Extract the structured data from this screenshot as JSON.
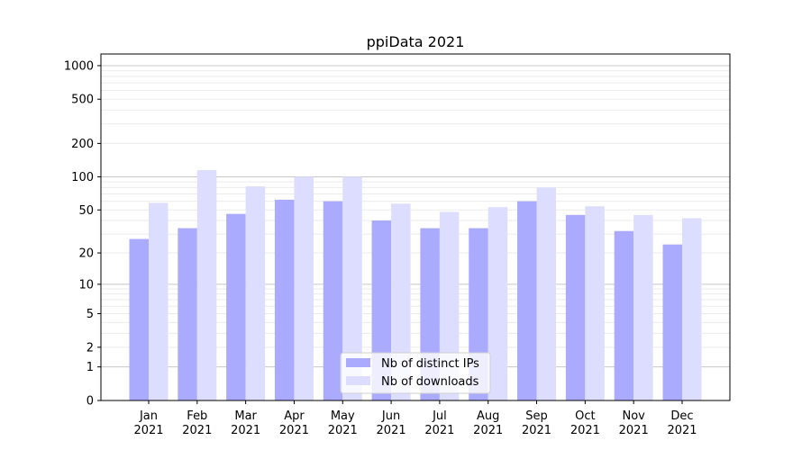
{
  "chart_data": {
    "type": "bar",
    "title": "ppiData 2021",
    "xlabel": "",
    "ylabel": "",
    "yscale": "log(1+y)",
    "ylim": [
      0,
      1350
    ],
    "yticks": [
      0,
      1,
      2,
      5,
      10,
      20,
      50,
      100,
      200,
      500,
      1000
    ],
    "grid": true,
    "legend_position": "lower-center",
    "categories": [
      "Jan\n2021",
      "Feb\n2021",
      "Mar\n2021",
      "Apr\n2021",
      "May\n2021",
      "Jun\n2021",
      "Jul\n2021",
      "Aug\n2021",
      "Sep\n2021",
      "Oct\n2021",
      "Nov\n2021",
      "Dec\n2021"
    ],
    "series": [
      {
        "name": "Nb of distinct IPs",
        "color": "#aaaaff",
        "values": [
          27,
          34,
          46,
          62,
          60,
          40,
          34,
          34,
          60,
          45,
          32,
          24
        ]
      },
      {
        "name": "Nb of downloads",
        "color": "#ddddff",
        "values": [
          58,
          115,
          82,
          100,
          100,
          57,
          48,
          53,
          80,
          54,
          45,
          42
        ]
      }
    ]
  }
}
